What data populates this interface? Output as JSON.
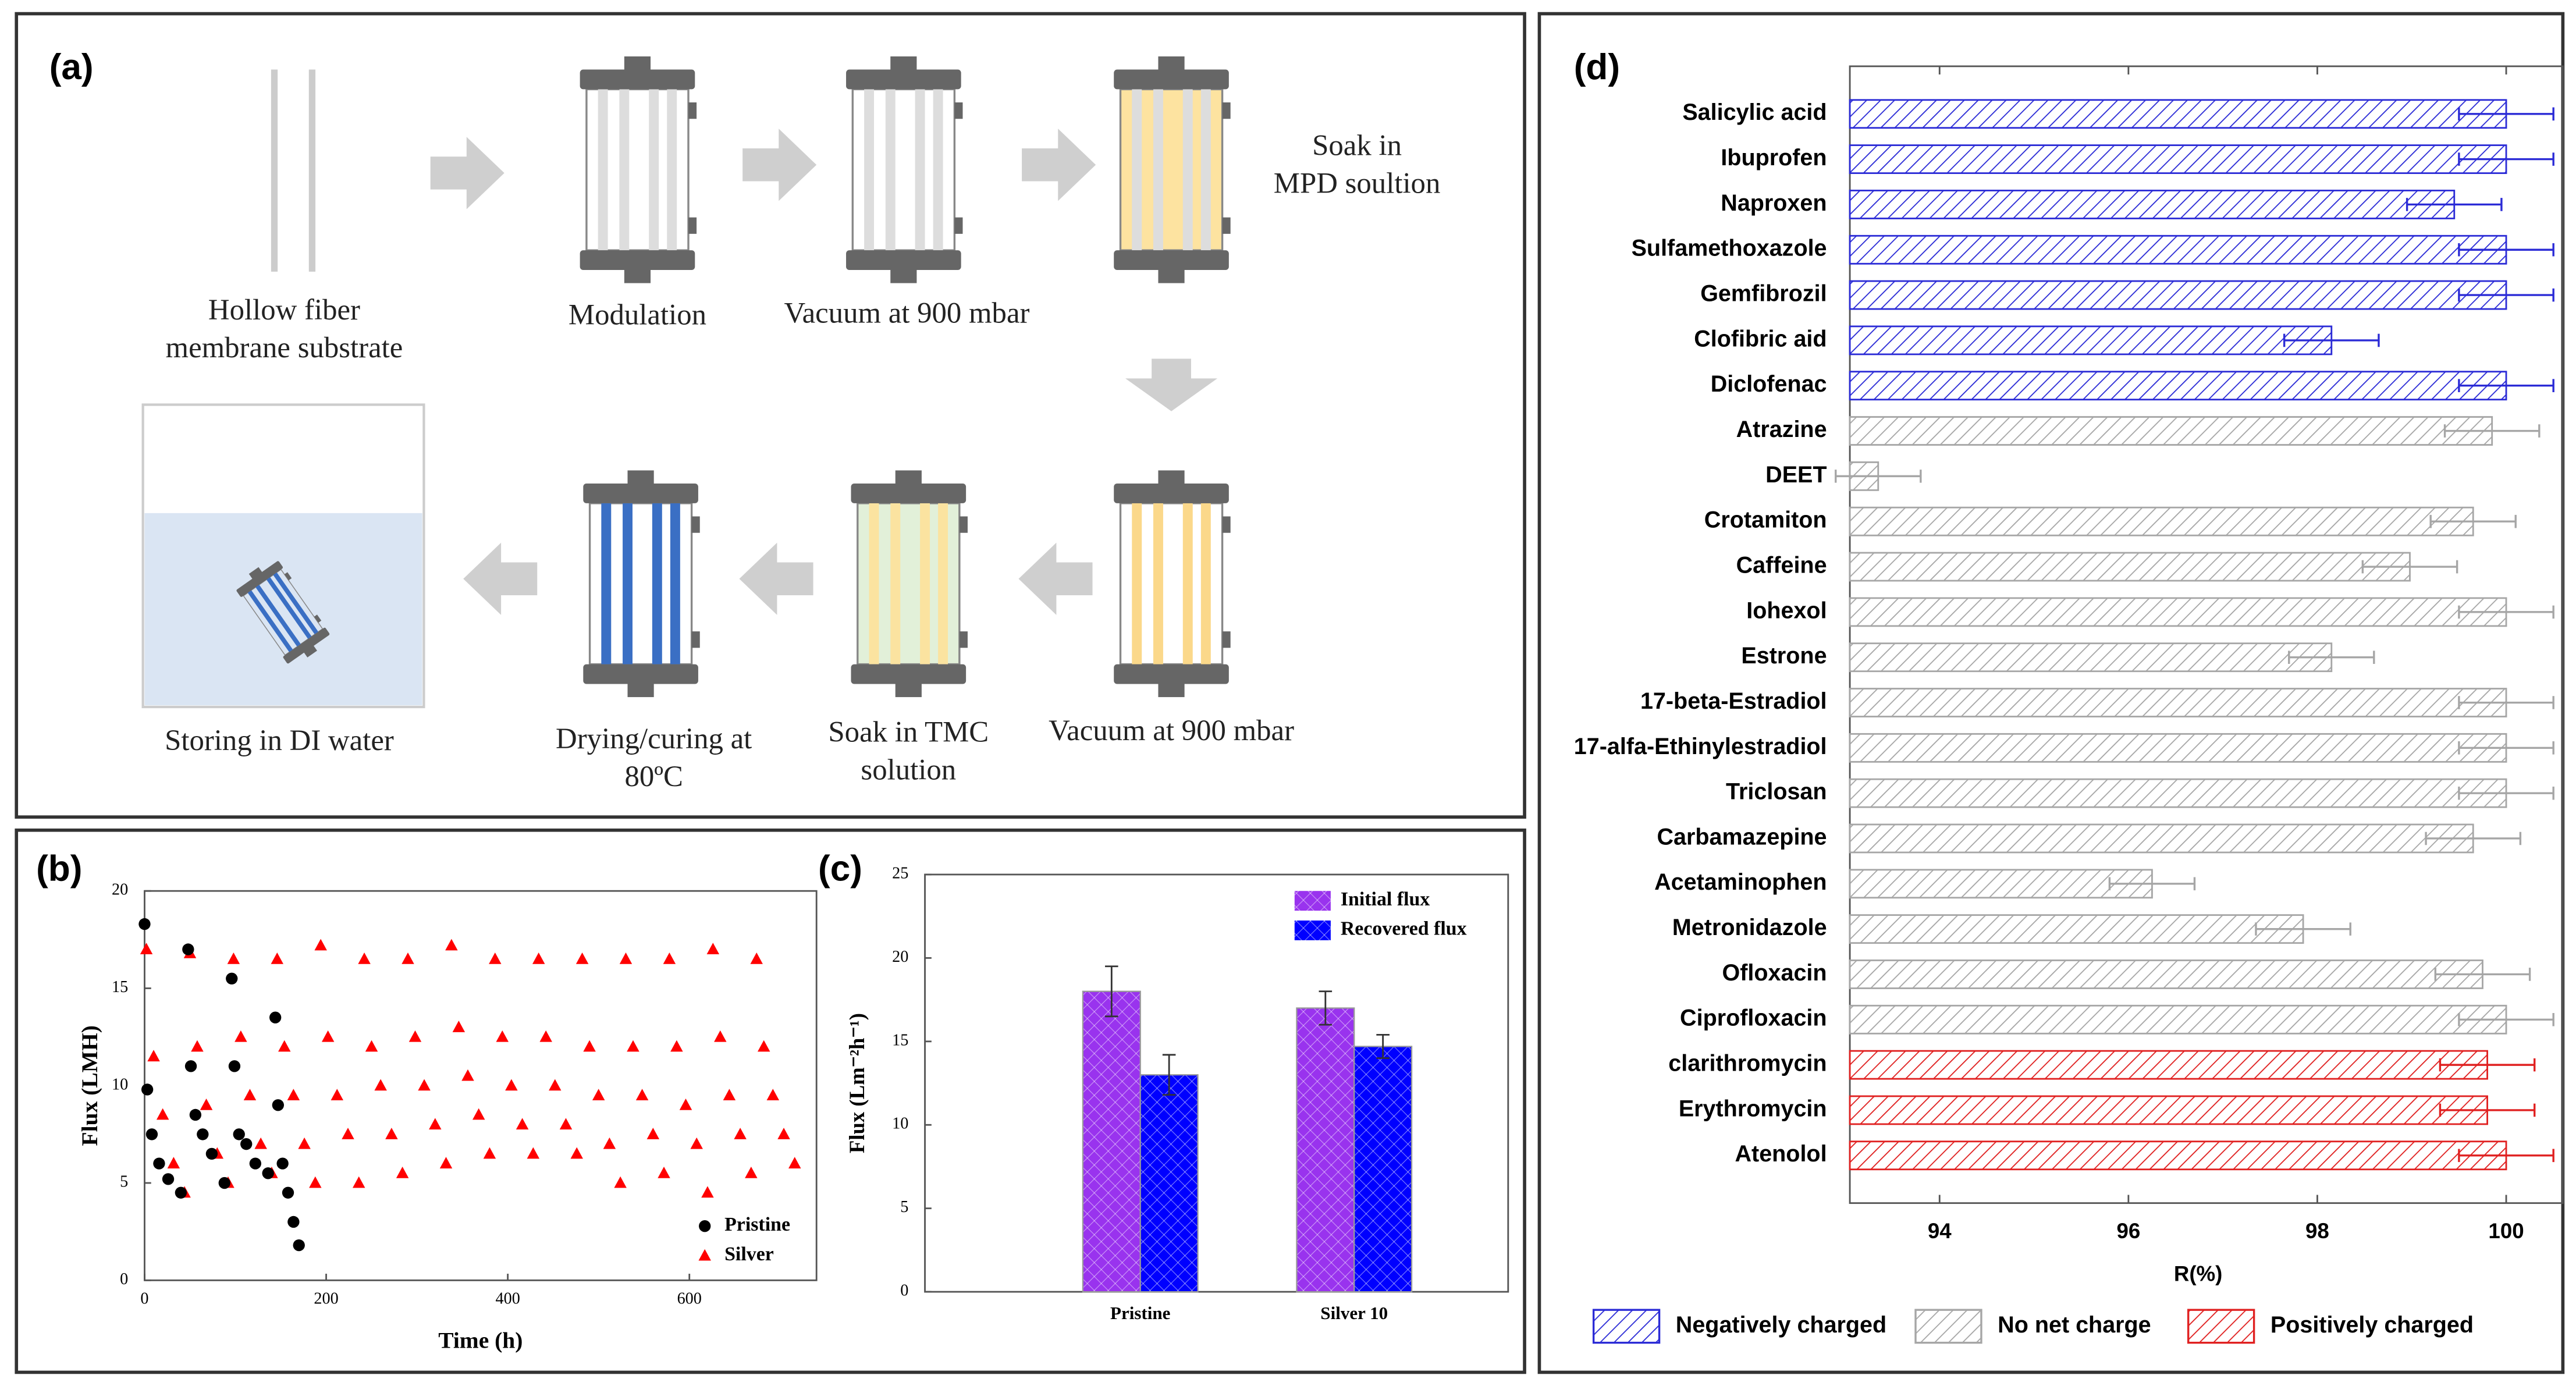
{
  "diagram": {
    "label": "(a)",
    "steps": [
      {
        "lines": [
          "Hollow fiber",
          "membrane substrate"
        ]
      },
      {
        "lines": [
          "Modulation"
        ]
      },
      {
        "lines": [
          "Vacuum at 900 mbar"
        ]
      },
      {
        "lines": [
          "Soak in",
          "MPD soultion"
        ]
      },
      {
        "lines": [
          "Vacuum at 900 mbar"
        ]
      },
      {
        "lines": [
          "Soak in TMC",
          "solution"
        ]
      },
      {
        "lines": [
          "Drying/curing at",
          "80ºC"
        ]
      },
      {
        "lines": [
          "Storing in DI water"
        ]
      }
    ]
  },
  "chart_data": [
    {
      "type": "scatter",
      "label": "(b)",
      "x_label": "Time (h)",
      "y_label": "Flux (LMH)",
      "xlim": [
        0,
        740
      ],
      "xticks": [
        0,
        200,
        400,
        600
      ],
      "ylim": [
        0,
        20
      ],
      "yticks": [
        0,
        5,
        10,
        15,
        20
      ],
      "series": [
        {
          "name": "Pristine",
          "color": "#000000",
          "marker": "circle",
          "x": [
            0,
            3,
            8,
            16,
            26,
            40,
            48,
            51,
            56,
            64,
            74,
            88,
            96,
            99,
            104,
            112,
            122,
            136,
            144,
            147,
            152,
            158,
            164,
            170
          ],
          "values": [
            18.3,
            9.8,
            7.5,
            6.0,
            5.2,
            4.5,
            17.0,
            11.0,
            8.5,
            7.5,
            6.5,
            5.0,
            15.5,
            11.0,
            7.5,
            7.0,
            6.0,
            5.5,
            13.5,
            9.0,
            6.0,
            4.5,
            3.0,
            1.8
          ]
        },
        {
          "name": "Silver",
          "color": "#ff0000",
          "marker": "triangle",
          "x": [
            2,
            10,
            20,
            32,
            44,
            50,
            58,
            68,
            80,
            92,
            98,
            106,
            116,
            128,
            140,
            146,
            154,
            164,
            176,
            188,
            194,
            202,
            212,
            224,
            236,
            242,
            250,
            260,
            272,
            284,
            290,
            298,
            308,
            320,
            332,
            338,
            346,
            356,
            368,
            380,
            386,
            394,
            404,
            416,
            428,
            434,
            442,
            452,
            464,
            476,
            482,
            490,
            500,
            512,
            524,
            530,
            538,
            548,
            560,
            572,
            578,
            586,
            596,
            608,
            620,
            626,
            634,
            644,
            656,
            668,
            674,
            682,
            692,
            704,
            716
          ],
          "values": [
            17.0,
            11.5,
            8.5,
            6.0,
            4.5,
            16.8,
            12.0,
            9.0,
            6.5,
            5.0,
            16.5,
            12.5,
            9.5,
            7.0,
            5.5,
            16.5,
            12.0,
            9.5,
            7.0,
            5.0,
            17.2,
            12.5,
            9.5,
            7.5,
            5.0,
            16.5,
            12.0,
            10.0,
            7.5,
            5.5,
            16.5,
            12.5,
            10.0,
            8.0,
            6.0,
            17.2,
            13.0,
            10.5,
            8.5,
            6.5,
            16.5,
            12.5,
            10.0,
            8.0,
            6.5,
            16.5,
            12.5,
            10.0,
            8.0,
            6.5,
            16.5,
            12.0,
            9.5,
            7.0,
            5.0,
            16.5,
            12.0,
            9.5,
            7.5,
            5.5,
            16.5,
            12.0,
            9.0,
            7.0,
            4.5,
            17.0,
            12.5,
            9.5,
            7.5,
            5.5,
            16.5,
            12.0,
            9.5,
            7.5,
            6.0
          ]
        }
      ]
    },
    {
      "type": "bar",
      "label": "(c)",
      "y_label": "Flux (Lm⁻²h⁻¹)",
      "categories": [
        "Pristine",
        "Silver 10"
      ],
      "ylim": [
        0,
        25
      ],
      "yticks": [
        0,
        5,
        10,
        15,
        20,
        25
      ],
      "series": [
        {
          "name": "Initial flux",
          "color": "#9933ee",
          "values": [
            18,
            17
          ],
          "errors": [
            1.5,
            1.0
          ]
        },
        {
          "name": "Recovered flux",
          "color": "#0000ff",
          "values": [
            13,
            14.7
          ],
          "errors": [
            1.2,
            0.7
          ]
        }
      ]
    },
    {
      "type": "bar",
      "orientation": "horizontal",
      "label": "(d)",
      "x_label": "R(%)",
      "categories": [
        "Salicylic acid",
        "Ibuprofen",
        "Naproxen",
        "Sulfamethoxazole",
        "Gemfibrozil",
        "Clofibric aid",
        "Diclofenac",
        "Atrazine",
        "DEET",
        "Crotamiton",
        "Caffeine",
        "Iohexol",
        "Estrone",
        "17-beta-Estradiol",
        "17-alfa-Ethinylestradiol",
        "Triclosan",
        "Carbamazepine",
        "Acetaminophen",
        "Metronidazole",
        "Ofloxacin",
        "Ciprofloxacin",
        "clarithromycin",
        "Erythromycin",
        "Atenolol"
      ],
      "values": [
        100,
        100,
        99.45,
        100,
        100,
        98.15,
        100,
        99.85,
        93.35,
        99.65,
        98.98,
        100,
        98.15,
        100,
        100,
        100,
        99.65,
        96.25,
        97.85,
        99.75,
        100,
        99.8,
        99.8,
        100
      ],
      "errors": [
        0.5,
        0.5,
        0.5,
        0.5,
        0.5,
        0.5,
        0.5,
        0.5,
        0.45,
        0.45,
        0.5,
        0.5,
        0.45,
        0.5,
        0.5,
        0.5,
        0.5,
        0.45,
        0.5,
        0.5,
        0.5,
        0.5,
        0.5,
        0.5
      ],
      "colors": [
        "#2b2bd6",
        "#2b2bd6",
        "#2b2bd6",
        "#2b2bd6",
        "#2b2bd6",
        "#2b2bd6",
        "#2b2bd6",
        "#a6a6a6",
        "#a6a6a6",
        "#a6a6a6",
        "#a6a6a6",
        "#a6a6a6",
        "#a6a6a6",
        "#a6a6a6",
        "#a6a6a6",
        "#a6a6a6",
        "#a6a6a6",
        "#a6a6a6",
        "#a6a6a6",
        "#a6a6a6",
        "#a6a6a6",
        "#e02020",
        "#e02020",
        "#e02020"
      ],
      "xlim": [
        93.05,
        100.6
      ],
      "xticks": [
        94,
        96,
        98,
        100
      ],
      "legend": [
        {
          "name": "Negatively charged",
          "color": "#2b2bd6"
        },
        {
          "name": "No net charge",
          "color": "#a6a6a6"
        },
        {
          "name": "Positively charged",
          "color": "#e02020"
        }
      ]
    }
  ]
}
